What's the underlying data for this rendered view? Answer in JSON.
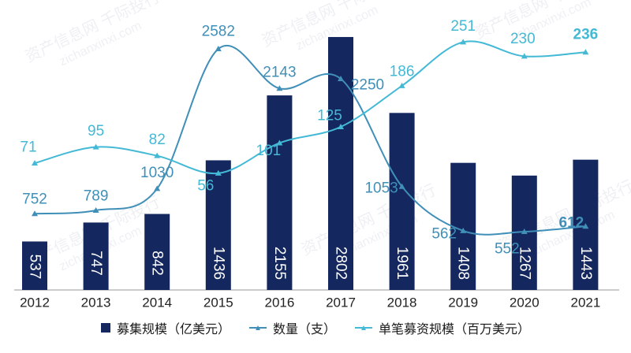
{
  "chart_data": {
    "type": "bar+line",
    "categories": [
      "2012",
      "2013",
      "2014",
      "2015",
      "2016",
      "2017",
      "2018",
      "2019",
      "2020",
      "2021"
    ],
    "series": [
      {
        "name": "募集规模（亿美元）",
        "kind": "bar",
        "color": "#14275e",
        "values": [
          537,
          747,
          842,
          1436,
          2155,
          2802,
          1961,
          1408,
          1267,
          1443
        ],
        "labels": [
          "537",
          "747",
          "842",
          "1436",
          "2155",
          "2802",
          "1961",
          "1408",
          "1267",
          "1443"
        ]
      },
      {
        "name": "数量（支）",
        "kind": "line",
        "color": "#3f8fb8",
        "values": [
          752,
          789,
          1030,
          2582,
          2143,
          2250,
          1053,
          562,
          552,
          612
        ],
        "labels": [
          "752",
          "789",
          "1030",
          "2582",
          "2143",
          "2250",
          "1053",
          "562",
          "552",
          "612"
        ]
      },
      {
        "name": "单笔募资规模（百万美元）",
        "kind": "line",
        "color": "#43b9d6",
        "values": [
          71,
          95,
          82,
          56,
          101,
          125,
          186,
          251,
          230,
          236
        ],
        "labels": [
          "71",
          "95",
          "82",
          "56",
          "101",
          "125",
          "186",
          "251",
          "230",
          "236"
        ]
      }
    ]
  },
  "watermark": {
    "lines": [
      "资产信息网 千际投行",
      "zichanxinxi.com"
    ]
  }
}
